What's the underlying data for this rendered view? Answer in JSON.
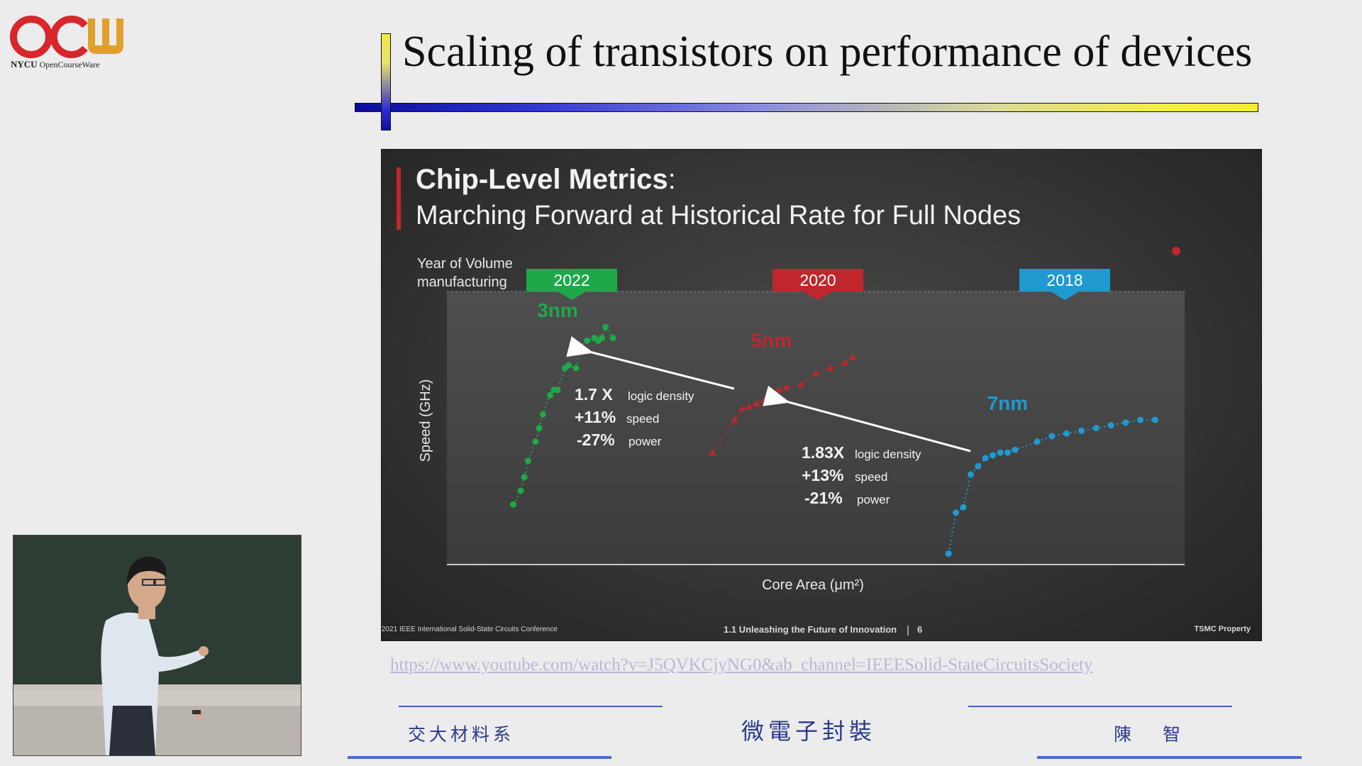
{
  "logo": {
    "letters": "OCW",
    "org": "NYCU",
    "sub": "OpenCourseWare"
  },
  "slide": {
    "title": "Scaling of transistors on performance of devices",
    "url": "https://www.youtube.com/watch?v=J5QVKCjyNG0&ab_channel=IEEESolid-StateCircuitsSociety",
    "footer_dept": "交大材料系",
    "footer_course": "微電子封裝",
    "footer_teacher": "陳 智"
  },
  "embedded": {
    "title_bold": "Chip-Level Metrics",
    "title_colon": ":",
    "subtitle": "Marching Forward at Historical Rate for Full Nodes",
    "year_label": "Year of Volume manufacturing",
    "footer_left": "2021 IEEE International Solid-State Circuits Conference",
    "footer_mid": "1.1 Unleashing the Future of Innovation",
    "footer_sep": "|",
    "footer_page": "6",
    "footer_right": "TSMC Property"
  },
  "chart_data": {
    "type": "scatter",
    "title": "Chip-Level Metrics",
    "xlabel": "Core Area (μm²)",
    "ylabel": "Speed (GHz)",
    "axis_values_shown": false,
    "colors": {
      "3nm": "#1fa84a",
      "5nm": "#c0272d",
      "7nm": "#1e9ad0"
    },
    "year_tags": [
      {
        "label": "2022",
        "color": "#1fa84a",
        "node": "3nm"
      },
      {
        "label": "2020",
        "color": "#c0272d",
        "node": "5nm"
      },
      {
        "label": "2018",
        "color": "#1e9ad0",
        "node": "7nm"
      }
    ],
    "series": [
      {
        "name": "3nm",
        "x": [
          0.09,
          0.1,
          0.105,
          0.11,
          0.12,
          0.125,
          0.13,
          0.14,
          0.145,
          0.15,
          0.16,
          0.165,
          0.175,
          0.18,
          0.19,
          0.2,
          0.205,
          0.21,
          0.215,
          0.225
        ],
        "y": [
          0.22,
          0.27,
          0.32,
          0.38,
          0.45,
          0.5,
          0.55,
          0.62,
          0.64,
          0.64,
          0.72,
          0.73,
          0.72,
          0.8,
          0.82,
          0.83,
          0.82,
          0.83,
          0.87,
          0.83
        ]
      },
      {
        "name": "5nm",
        "x": [
          0.36,
          0.39,
          0.4,
          0.41,
          0.42,
          0.43,
          0.44,
          0.45,
          0.46,
          0.48,
          0.5,
          0.52,
          0.54,
          0.55
        ],
        "y": [
          0.41,
          0.53,
          0.57,
          0.58,
          0.59,
          0.6,
          0.6,
          0.64,
          0.65,
          0.66,
          0.7,
          0.72,
          0.74,
          0.76
        ]
      },
      {
        "name": "7nm",
        "x": [
          0.68,
          0.69,
          0.7,
          0.71,
          0.72,
          0.73,
          0.74,
          0.75,
          0.76,
          0.77,
          0.8,
          0.82,
          0.84,
          0.86,
          0.88,
          0.9,
          0.92,
          0.94,
          0.96
        ],
        "y": [
          0.04,
          0.19,
          0.21,
          0.33,
          0.36,
          0.39,
          0.4,
          0.41,
          0.41,
          0.42,
          0.45,
          0.47,
          0.48,
          0.49,
          0.5,
          0.51,
          0.52,
          0.53,
          0.53
        ]
      }
    ],
    "annotations": [
      {
        "ratio": "1.7 X",
        "ratio_label": "logic density",
        "speed": "+11%",
        "speed_label": "speed",
        "power": "-27%",
        "power_label": "power"
      },
      {
        "ratio": "1.83X",
        "ratio_label": "logic density",
        "speed": "+13%",
        "speed_label": "speed",
        "power": "-21%",
        "power_label": "power"
      }
    ],
    "grid": false,
    "legend": "none"
  }
}
